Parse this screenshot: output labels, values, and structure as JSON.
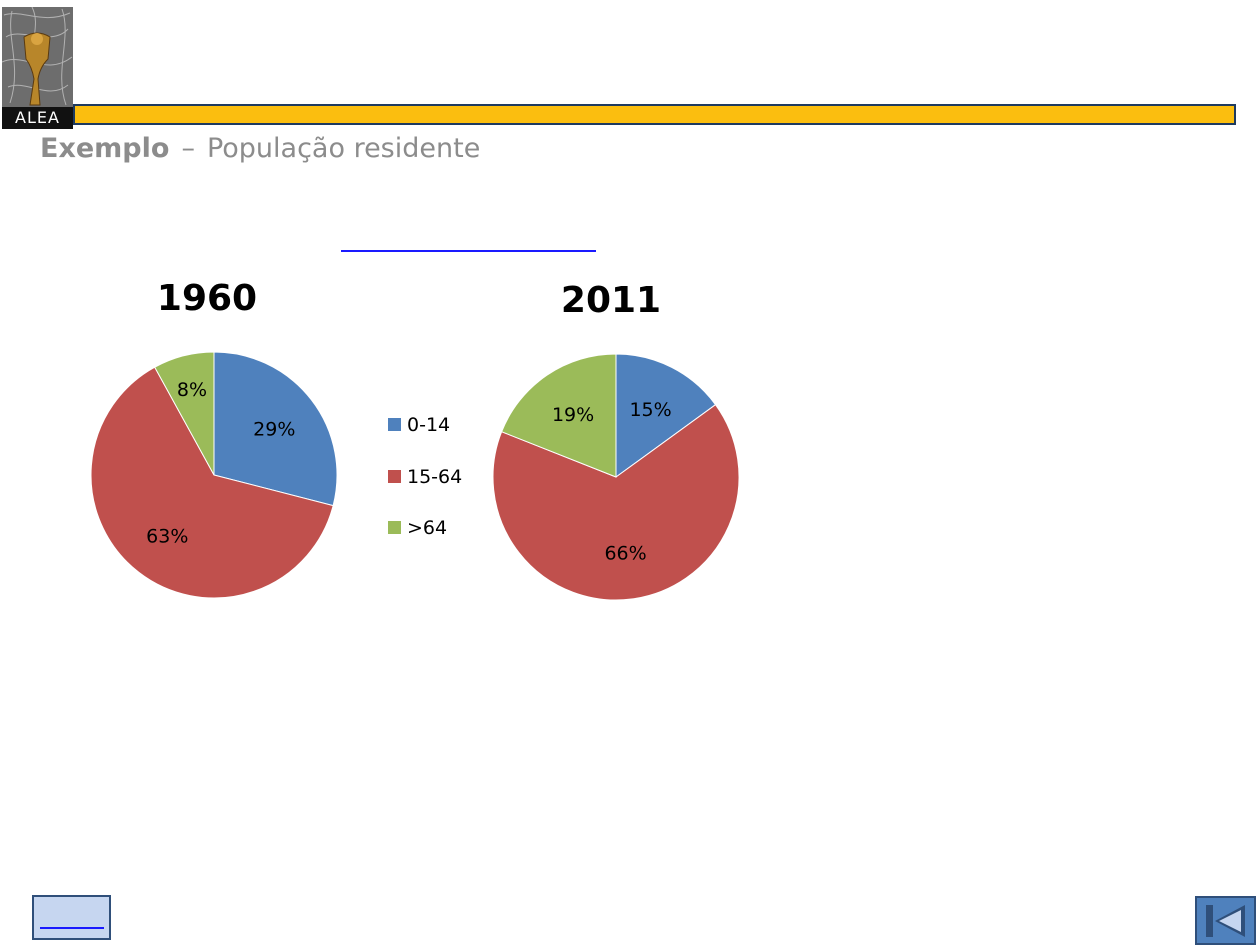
{
  "logo": {
    "text": "ALEA"
  },
  "header": {
    "title_bold": "Exemplo",
    "dash": "–",
    "title_rest": "População  residente"
  },
  "colors": {
    "bar": "#fbbe0f",
    "blue": "#4f81bd",
    "red": "#c0504d",
    "green": "#9bbb59"
  },
  "chart_data": [
    {
      "type": "pie",
      "title": "1960",
      "categories": [
        "0-14",
        "15-64",
        ">64"
      ],
      "values": [
        29,
        63,
        8
      ],
      "labels": [
        "29%",
        "63%",
        "8%"
      ],
      "legend": "right"
    },
    {
      "type": "pie",
      "title": "2011",
      "categories": [
        "0-14",
        "15-64",
        ">64"
      ],
      "values": [
        15,
        66,
        19
      ],
      "labels": [
        "15%",
        "66%",
        "19%"
      ],
      "legend": "left"
    }
  ],
  "legend": {
    "items": [
      "0-14",
      "15-64",
      ">64"
    ]
  },
  "nav": {
    "home_icon": "home-button",
    "back_icon": "first-slide-icon"
  }
}
